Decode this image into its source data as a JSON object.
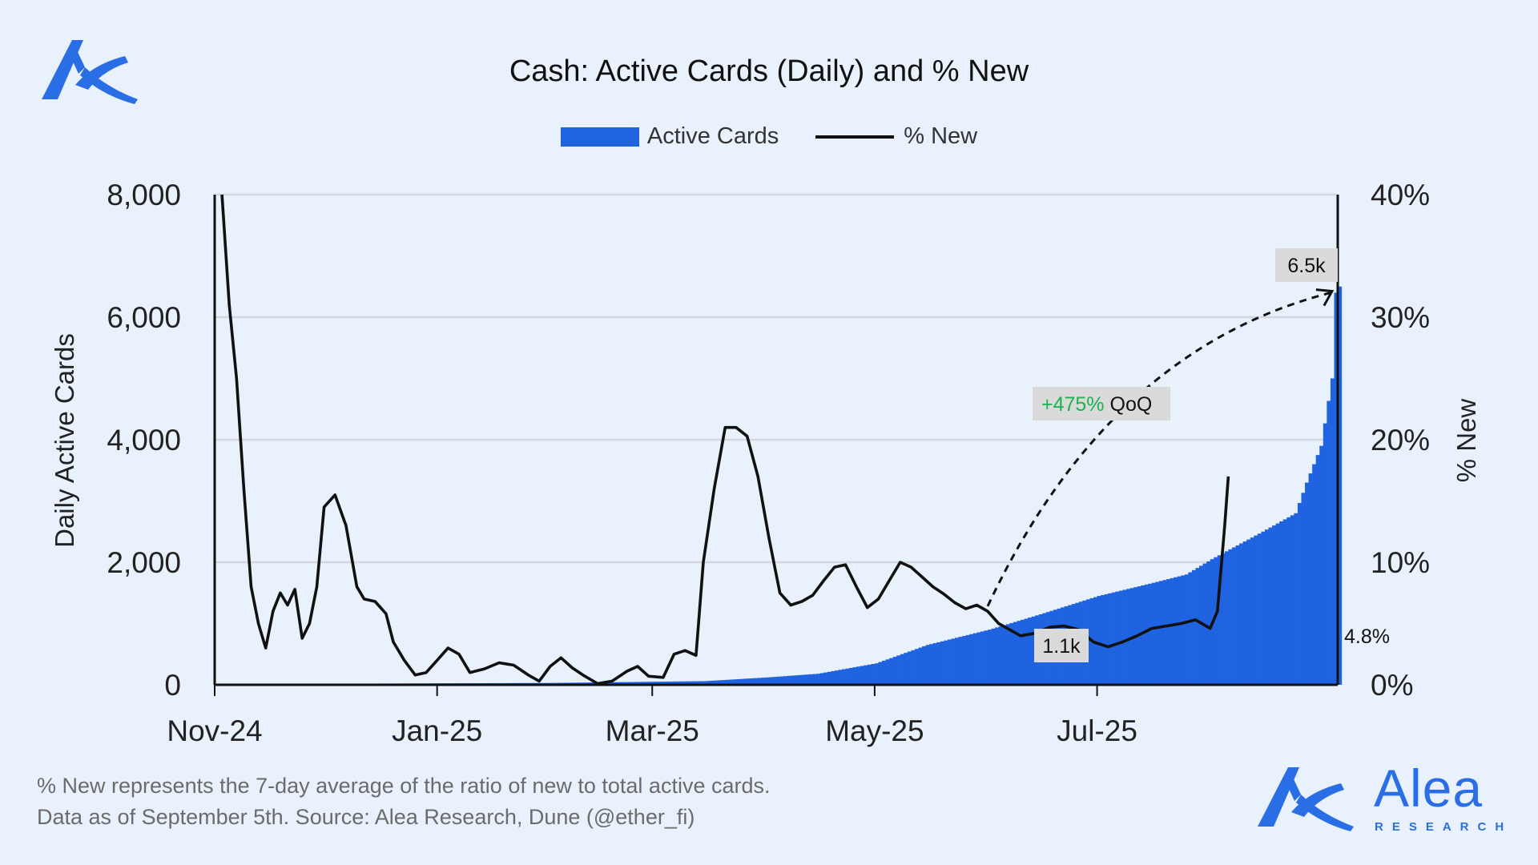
{
  "colors": {
    "background": "#e9f1fd",
    "bars": "#1f63e0",
    "line": "#111111",
    "accent_green": "#19b34f",
    "label_box": "#dadada"
  },
  "chart_data": {
    "type": "bar+line",
    "title": "Cash: Active Cards (Daily) and % New",
    "legend": [
      "Active Cards",
      "% New"
    ],
    "legend_position": "top-center",
    "ylabel_left": "Daily Active Cards",
    "ylabel_right": "% New",
    "xlabel": "",
    "x_ticks": [
      "Nov-24",
      "Jan-25",
      "Mar-25",
      "May-25",
      "Jul-25"
    ],
    "y_ticks_left": [
      "0",
      "2,000",
      "4,000",
      "6,000",
      "8,000"
    ],
    "y_ticks_right": [
      "0%",
      "10%",
      "20%",
      "30%",
      "40%"
    ],
    "ylim_left": [
      0,
      8000
    ],
    "ylim_right": [
      0,
      40
    ],
    "grid": true,
    "x_start": "2024-11-01",
    "x_end": "2025-09-05",
    "active_cards_keypoints": [
      [
        "2024-11-01",
        0
      ],
      [
        "2024-12-15",
        20
      ],
      [
        "2025-02-01",
        30
      ],
      [
        "2025-03-15",
        60
      ],
      [
        "2025-04-01",
        120
      ],
      [
        "2025-04-15",
        180
      ],
      [
        "2025-05-01",
        350
      ],
      [
        "2025-05-15",
        650
      ],
      [
        "2025-06-01",
        900
      ],
      [
        "2025-06-15",
        1150
      ],
      [
        "2025-07-01",
        1450
      ],
      [
        "2025-07-15",
        1650
      ],
      [
        "2025-07-25",
        1800
      ],
      [
        "2025-08-01",
        2050
      ],
      [
        "2025-08-15",
        2500
      ],
      [
        "2025-08-24",
        2800
      ],
      [
        "2025-08-27",
        3300
      ],
      [
        "2025-08-31",
        3900
      ],
      [
        "2025-09-03",
        5000
      ],
      [
        "2025-09-04",
        6400
      ],
      [
        "2025-09-05",
        6500
      ]
    ],
    "pct_new_series": [
      [
        "2024-11-03",
        40.0
      ],
      [
        "2024-11-05",
        31.0
      ],
      [
        "2024-11-07",
        25.0
      ],
      [
        "2024-11-09",
        16.0
      ],
      [
        "2024-11-11",
        8.0
      ],
      [
        "2024-11-13",
        5.0
      ],
      [
        "2024-11-15",
        3.0
      ],
      [
        "2024-11-17",
        6.0
      ],
      [
        "2024-11-19",
        7.5
      ],
      [
        "2024-11-21",
        6.5
      ],
      [
        "2024-11-23",
        7.8
      ],
      [
        "2024-11-25",
        3.8
      ],
      [
        "2024-11-27",
        5.0
      ],
      [
        "2024-11-29",
        8.0
      ],
      [
        "2024-12-01",
        14.5
      ],
      [
        "2024-12-04",
        15.5
      ],
      [
        "2024-12-07",
        13.0
      ],
      [
        "2024-12-10",
        8.0
      ],
      [
        "2024-12-12",
        7.0
      ],
      [
        "2024-12-15",
        6.8
      ],
      [
        "2024-12-18",
        5.8
      ],
      [
        "2024-12-20",
        3.5
      ],
      [
        "2024-12-23",
        2.0
      ],
      [
        "2024-12-26",
        0.8
      ],
      [
        "2024-12-29",
        1.0
      ],
      [
        "2025-01-01",
        2.0
      ],
      [
        "2025-01-04",
        3.0
      ],
      [
        "2025-01-07",
        2.5
      ],
      [
        "2025-01-10",
        1.0
      ],
      [
        "2025-01-14",
        1.3
      ],
      [
        "2025-01-18",
        1.8
      ],
      [
        "2025-01-22",
        1.6
      ],
      [
        "2025-01-26",
        0.8
      ],
      [
        "2025-01-29",
        0.3
      ],
      [
        "2025-02-01",
        1.5
      ],
      [
        "2025-02-04",
        2.2
      ],
      [
        "2025-02-07",
        1.4
      ],
      [
        "2025-02-10",
        0.8
      ],
      [
        "2025-02-14",
        0.1
      ],
      [
        "2025-02-18",
        0.3
      ],
      [
        "2025-02-22",
        1.1
      ],
      [
        "2025-02-25",
        1.5
      ],
      [
        "2025-02-28",
        0.7
      ],
      [
        "2025-03-04",
        0.6
      ],
      [
        "2025-03-07",
        2.5
      ],
      [
        "2025-03-10",
        2.8
      ],
      [
        "2025-03-13",
        2.4
      ],
      [
        "2025-03-15",
        10.0
      ],
      [
        "2025-03-18",
        16.0
      ],
      [
        "2025-03-21",
        21.0
      ],
      [
        "2025-03-24",
        21.0
      ],
      [
        "2025-03-27",
        20.3
      ],
      [
        "2025-03-30",
        17.0
      ],
      [
        "2025-04-02",
        12.0
      ],
      [
        "2025-04-05",
        7.5
      ],
      [
        "2025-04-08",
        6.5
      ],
      [
        "2025-04-11",
        6.8
      ],
      [
        "2025-04-14",
        7.3
      ],
      [
        "2025-04-17",
        8.5
      ],
      [
        "2025-04-20",
        9.6
      ],
      [
        "2025-04-23",
        9.8
      ],
      [
        "2025-04-26",
        8.0
      ],
      [
        "2025-04-29",
        6.3
      ],
      [
        "2025-05-02",
        7.0
      ],
      [
        "2025-05-05",
        8.5
      ],
      [
        "2025-05-08",
        10.0
      ],
      [
        "2025-05-11",
        9.6
      ],
      [
        "2025-05-14",
        8.8
      ],
      [
        "2025-05-17",
        8.0
      ],
      [
        "2025-05-20",
        7.4
      ],
      [
        "2025-05-23",
        6.7
      ],
      [
        "2025-05-26",
        6.2
      ],
      [
        "2025-05-29",
        6.5
      ],
      [
        "2025-06-01",
        6.0
      ],
      [
        "2025-06-04",
        5.0
      ],
      [
        "2025-06-07",
        4.5
      ],
      [
        "2025-06-10",
        4.0
      ],
      [
        "2025-06-14",
        4.2
      ],
      [
        "2025-06-18",
        4.7
      ],
      [
        "2025-06-22",
        4.8
      ],
      [
        "2025-06-26",
        4.5
      ],
      [
        "2025-06-30",
        3.5
      ],
      [
        "2025-07-04",
        3.1
      ],
      [
        "2025-07-08",
        3.5
      ],
      [
        "2025-07-12",
        4.0
      ],
      [
        "2025-07-16",
        4.6
      ],
      [
        "2025-07-20",
        4.8
      ],
      [
        "2025-07-24",
        5.0
      ],
      [
        "2025-07-28",
        5.3
      ],
      [
        "2025-08-01",
        4.6
      ],
      [
        "2025-08-03",
        6.0
      ],
      [
        "2025-08-05",
        13.0
      ],
      [
        "2025-08-06",
        17.0
      ]
    ],
    "annotations": {
      "start_label": "1.1k",
      "end_label": "6.5k",
      "growth_value": "+475%",
      "growth_suffix": "QoQ",
      "last_pct_label": "4.8%"
    }
  },
  "footnote": {
    "line1": "% New represents the 7-day average of the ratio of new to total active cards.",
    "line2": "Data as of September 5th. Source: Alea Research, Dune (@ether_fi)"
  },
  "brand": {
    "name": "Alea",
    "subtitle": "RESEARCH",
    "logo_icon": "alea-logo-icon"
  }
}
